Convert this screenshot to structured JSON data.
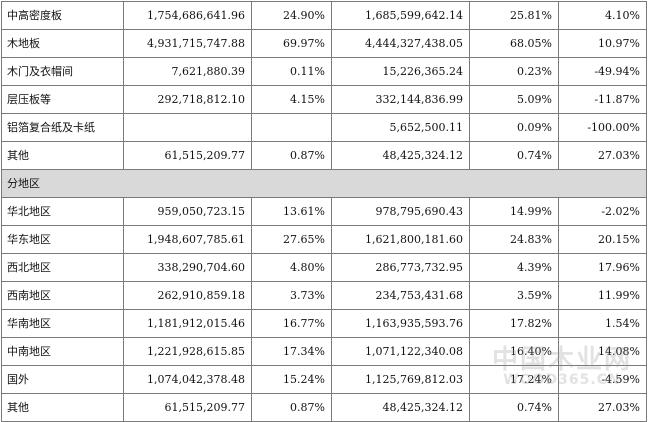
{
  "rows_product": [
    {
      "name": "中高密度板",
      "v1": "1,754,686,641.96",
      "p1": "24.90%",
      "v2": "1,685,599,642.14",
      "p2": "25.81%",
      "chg": "4.10%"
    },
    {
      "name": "木地板",
      "v1": "4,931,715,747.88",
      "p1": "69.97%",
      "v2": "4,444,327,438.05",
      "p2": "68.05%",
      "chg": "10.97%"
    },
    {
      "name": "木门及衣帽间",
      "v1": "7,621,880.39",
      "p1": "0.11%",
      "v2": "15,226,365.24",
      "p2": "0.23%",
      "chg": "-49.94%"
    },
    {
      "name": "层压板等",
      "v1": "292,718,812.10",
      "p1": "4.15%",
      "v2": "332,144,836.99",
      "p2": "5.09%",
      "chg": "-11.87%"
    },
    {
      "name": "铝箔复合纸及卡纸",
      "v1": "",
      "p1": "",
      "v2": "5,652,500.11",
      "p2": "0.09%",
      "chg": "-100.00%"
    },
    {
      "name": "其他",
      "v1": "61,515,209.77",
      "p1": "0.87%",
      "v2": "48,425,324.12",
      "p2": "0.74%",
      "chg": "27.03%"
    }
  ],
  "section_region": "分地区",
  "rows_region": [
    {
      "name": "华北地区",
      "v1": "959,050,723.15",
      "p1": "13.61%",
      "v2": "978,795,690.43",
      "p2": "14.99%",
      "chg": "-2.02%"
    },
    {
      "name": "华东地区",
      "v1": "1,948,607,785.61",
      "p1": "27.65%",
      "v2": "1,621,800,181.60",
      "p2": "24.83%",
      "chg": "20.15%"
    },
    {
      "name": "西北地区",
      "v1": "338,290,704.60",
      "p1": "4.80%",
      "v2": "286,773,732.95",
      "p2": "4.39%",
      "chg": "17.96%"
    },
    {
      "name": "西南地区",
      "v1": "262,910,859.18",
      "p1": "3.73%",
      "v2": "234,753,431.68",
      "p2": "3.59%",
      "chg": "11.99%"
    },
    {
      "name": "华南地区",
      "v1": "1,181,912,015.46",
      "p1": "16.77%",
      "v2": "1,163,935,593.76",
      "p2": "17.82%",
      "chg": "1.54%"
    },
    {
      "name": "中南地区",
      "v1": "1,221,928,615.85",
      "p1": "17.34%",
      "v2": "1,071,122,340.08",
      "p2": "16.40%",
      "chg": "14.08%"
    },
    {
      "name": "国外",
      "v1": "1,074,042,378.48",
      "p1": "15.24%",
      "v2": "1,125,769,812.03",
      "p2": "17.24%",
      "chg": "-4.59%"
    },
    {
      "name": "其他",
      "v1": "61,515,209.77",
      "p1": "0.87%",
      "v2": "48,425,324.12",
      "p2": "0.74%",
      "chg": "27.03%"
    }
  ],
  "watermark": {
    "cn": "中国木业网",
    "en": "WOOD365.CN"
  }
}
